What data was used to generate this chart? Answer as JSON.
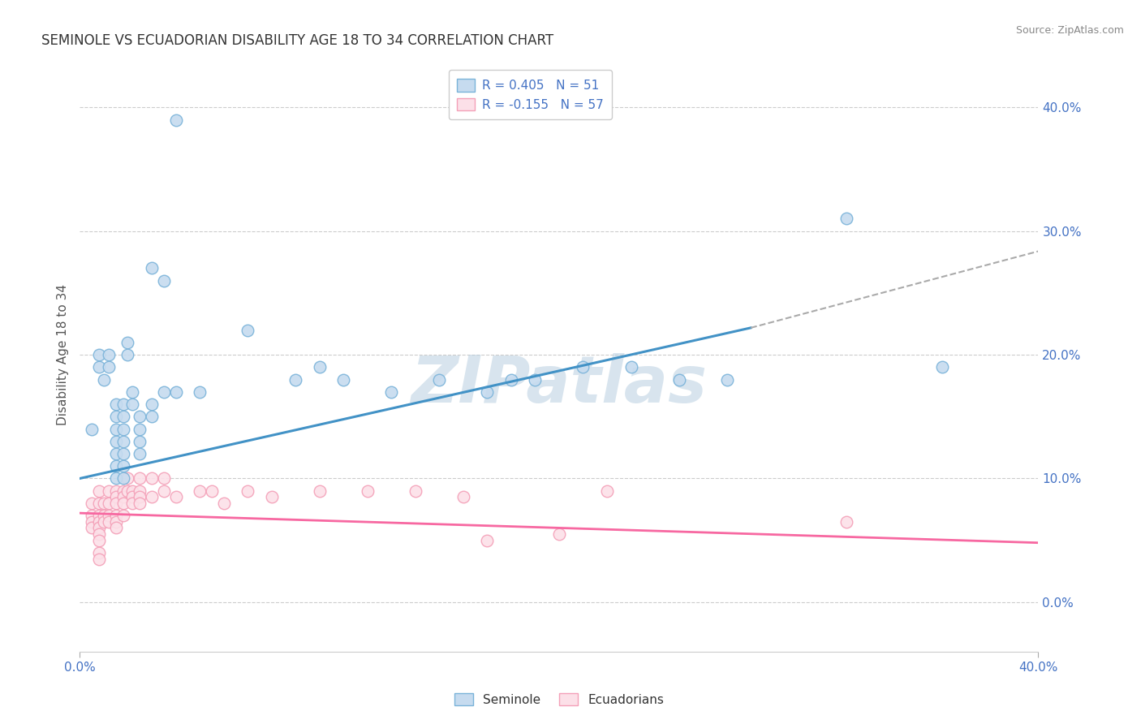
{
  "title": "SEMINOLE VS ECUADORIAN DISABILITY AGE 18 TO 34 CORRELATION CHART",
  "source": "Source: ZipAtlas.com",
  "ylabel": "Disability Age 18 to 34",
  "xlim": [
    0.0,
    0.4
  ],
  "ylim": [
    -0.04,
    0.44
  ],
  "yticks": [
    0.0,
    0.1,
    0.2,
    0.3,
    0.4
  ],
  "watermark": "ZIPatlas",
  "seminole_color": "#7ab3d9",
  "seminole_fill": "#c6dbef",
  "ecuadorian_color": "#f4a0b8",
  "ecuadorian_fill": "#fce0e8",
  "trend_seminole_color": "#4292c6",
  "trend_ecuadorian_color": "#f768a1",
  "trend_dash_color": "#aaaaaa",
  "legend_text_color": "#4472c4",
  "axis_label_color": "#4472c4",
  "title_color": "#333333",
  "source_color": "#888888",
  "grid_color": "#cccccc",
  "seminole_trend": [
    0.1,
    0.274
  ],
  "seminole_dash": [
    0.274,
    0.32
  ],
  "ecuadorian_trend": [
    0.072,
    0.048
  ],
  "seminole_points": [
    [
      0.005,
      0.14
    ],
    [
      0.008,
      0.19
    ],
    [
      0.008,
      0.2
    ],
    [
      0.01,
      0.18
    ],
    [
      0.012,
      0.2
    ],
    [
      0.012,
      0.19
    ],
    [
      0.015,
      0.16
    ],
    [
      0.015,
      0.15
    ],
    [
      0.015,
      0.14
    ],
    [
      0.015,
      0.13
    ],
    [
      0.015,
      0.12
    ],
    [
      0.015,
      0.11
    ],
    [
      0.015,
      0.1
    ],
    [
      0.018,
      0.16
    ],
    [
      0.018,
      0.15
    ],
    [
      0.018,
      0.14
    ],
    [
      0.018,
      0.13
    ],
    [
      0.018,
      0.12
    ],
    [
      0.018,
      0.11
    ],
    [
      0.018,
      0.1
    ],
    [
      0.02,
      0.21
    ],
    [
      0.02,
      0.2
    ],
    [
      0.022,
      0.17
    ],
    [
      0.022,
      0.16
    ],
    [
      0.025,
      0.15
    ],
    [
      0.025,
      0.14
    ],
    [
      0.025,
      0.13
    ],
    [
      0.025,
      0.12
    ],
    [
      0.03,
      0.27
    ],
    [
      0.03,
      0.16
    ],
    [
      0.03,
      0.15
    ],
    [
      0.035,
      0.26
    ],
    [
      0.035,
      0.17
    ],
    [
      0.04,
      0.39
    ],
    [
      0.04,
      0.17
    ],
    [
      0.05,
      0.17
    ],
    [
      0.07,
      0.22
    ],
    [
      0.09,
      0.18
    ],
    [
      0.1,
      0.19
    ],
    [
      0.11,
      0.18
    ],
    [
      0.13,
      0.17
    ],
    [
      0.15,
      0.18
    ],
    [
      0.17,
      0.17
    ],
    [
      0.18,
      0.18
    ],
    [
      0.19,
      0.18
    ],
    [
      0.21,
      0.19
    ],
    [
      0.23,
      0.19
    ],
    [
      0.25,
      0.18
    ],
    [
      0.27,
      0.18
    ],
    [
      0.32,
      0.31
    ],
    [
      0.36,
      0.19
    ]
  ],
  "ecuadorian_points": [
    [
      0.005,
      0.08
    ],
    [
      0.005,
      0.07
    ],
    [
      0.005,
      0.065
    ],
    [
      0.005,
      0.06
    ],
    [
      0.008,
      0.09
    ],
    [
      0.008,
      0.08
    ],
    [
      0.008,
      0.07
    ],
    [
      0.008,
      0.065
    ],
    [
      0.008,
      0.06
    ],
    [
      0.008,
      0.055
    ],
    [
      0.008,
      0.05
    ],
    [
      0.008,
      0.04
    ],
    [
      0.008,
      0.035
    ],
    [
      0.01,
      0.08
    ],
    [
      0.01,
      0.07
    ],
    [
      0.01,
      0.065
    ],
    [
      0.012,
      0.09
    ],
    [
      0.012,
      0.08
    ],
    [
      0.012,
      0.07
    ],
    [
      0.012,
      0.065
    ],
    [
      0.015,
      0.09
    ],
    [
      0.015,
      0.085
    ],
    [
      0.015,
      0.08
    ],
    [
      0.015,
      0.07
    ],
    [
      0.015,
      0.065
    ],
    [
      0.015,
      0.06
    ],
    [
      0.018,
      0.09
    ],
    [
      0.018,
      0.085
    ],
    [
      0.018,
      0.08
    ],
    [
      0.018,
      0.07
    ],
    [
      0.02,
      0.1
    ],
    [
      0.02,
      0.09
    ],
    [
      0.022,
      0.09
    ],
    [
      0.022,
      0.085
    ],
    [
      0.022,
      0.08
    ],
    [
      0.025,
      0.1
    ],
    [
      0.025,
      0.09
    ],
    [
      0.025,
      0.085
    ],
    [
      0.025,
      0.08
    ],
    [
      0.03,
      0.1
    ],
    [
      0.03,
      0.085
    ],
    [
      0.035,
      0.1
    ],
    [
      0.035,
      0.09
    ],
    [
      0.04,
      0.085
    ],
    [
      0.05,
      0.09
    ],
    [
      0.055,
      0.09
    ],
    [
      0.06,
      0.08
    ],
    [
      0.07,
      0.09
    ],
    [
      0.08,
      0.085
    ],
    [
      0.1,
      0.09
    ],
    [
      0.12,
      0.09
    ],
    [
      0.14,
      0.09
    ],
    [
      0.16,
      0.085
    ],
    [
      0.17,
      0.05
    ],
    [
      0.2,
      0.055
    ],
    [
      0.22,
      0.09
    ],
    [
      0.32,
      0.065
    ]
  ]
}
